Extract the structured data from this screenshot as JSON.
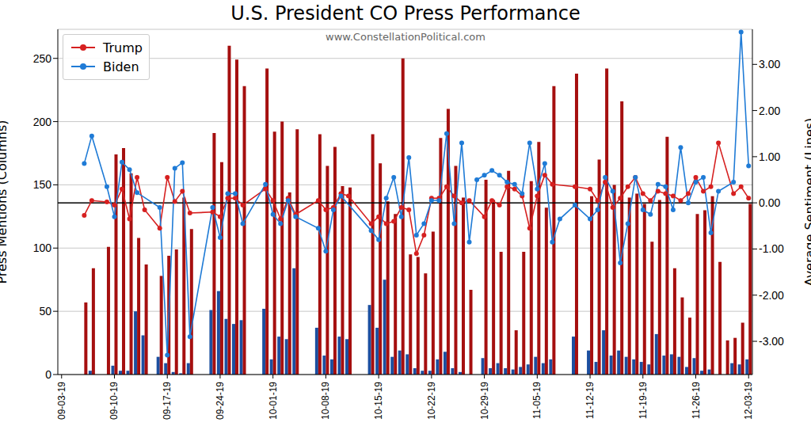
{
  "chart_data": {
    "type": "bar",
    "title": "U.S. President CO Press Performance",
    "subtitle": "www.ConstellationPolitical.com",
    "y_label": "Press Mentions (Columns)",
    "y2_label": "Average Sentiment (Lines)",
    "categories": [
      "09-03-19",
      null,
      null,
      null,
      null,
      null,
      null,
      "09-10-19",
      null,
      null,
      null,
      null,
      null,
      null,
      "09-17-19",
      null,
      null,
      null,
      null,
      null,
      null,
      "09-24-19",
      null,
      null,
      null,
      null,
      null,
      null,
      "10-01-19",
      null,
      null,
      null,
      null,
      null,
      null,
      "10-08-19",
      null,
      null,
      null,
      null,
      null,
      null,
      "10-15-19",
      null,
      null,
      null,
      null,
      null,
      null,
      "10-22-19",
      null,
      null,
      null,
      null,
      null,
      null,
      "10-29-19",
      null,
      null,
      null,
      null,
      null,
      null,
      "11-05-19",
      null,
      null,
      null,
      null,
      null,
      null,
      "11-12-19",
      null,
      null,
      null,
      null,
      null,
      null,
      "11-19-19",
      null,
      null,
      null,
      null,
      null,
      null,
      "11-26-19",
      null,
      null,
      null,
      null,
      null,
      null,
      "12-03-19"
    ],
    "series": [
      {
        "name": "Trump",
        "type": "bar",
        "color": "#a50f0f",
        "values": [
          null,
          null,
          null,
          57,
          84,
          null,
          101,
          174,
          179,
          159,
          108,
          87,
          null,
          78,
          94,
          99,
          140,
          115,
          null,
          null,
          191,
          168,
          260,
          249,
          228,
          null,
          null,
          242,
          192,
          200,
          144,
          194,
          null,
          null,
          190,
          165,
          180,
          149,
          148,
          null,
          null,
          190,
          167,
          137,
          127,
          250,
          95,
          93,
          80,
          113,
          187,
          210,
          165,
          140,
          67,
          null,
          154,
          138,
          97,
          161,
          35,
          97,
          153,
          184,
          132,
          228,
          null,
          null,
          238,
          null,
          141,
          170,
          242,
          150,
          216,
          140,
          143,
          135,
          105,
          138,
          188,
          84,
          61,
          45,
          127,
          130,
          141,
          89,
          27,
          29,
          41,
          135
        ]
      },
      {
        "name": "Biden",
        "type": "bar",
        "color": "#1c4fa0",
        "values": [
          null,
          null,
          null,
          null,
          3,
          null,
          null,
          7,
          3,
          3,
          50,
          31,
          null,
          14,
          9,
          2,
          1,
          9,
          null,
          null,
          51,
          66,
          44,
          40,
          43,
          null,
          null,
          52,
          12,
          30,
          28,
          84,
          null,
          null,
          37,
          15,
          12,
          30,
          28,
          null,
          null,
          55,
          37,
          75,
          14,
          19,
          16,
          5,
          3,
          3,
          12,
          18,
          5,
          2,
          null,
          null,
          13,
          5,
          9,
          5,
          4,
          6,
          8,
          14,
          9,
          12,
          null,
          null,
          30,
          null,
          19,
          10,
          35,
          15,
          19,
          14,
          12,
          10,
          8,
          32,
          15,
          16,
          14,
          6,
          13,
          3,
          4,
          null,
          null,
          9,
          8,
          12
        ]
      },
      {
        "name": "Trump",
        "type": "line",
        "axis": "y2",
        "color": "#d62020",
        "marker": "o",
        "line_style": "solid",
        "values": [
          null,
          null,
          null,
          -0.27,
          0.05,
          null,
          0.02,
          -0.05,
          0.3,
          -0.35,
          0.55,
          -0.15,
          null,
          -0.55,
          0.55,
          0.03,
          0.25,
          -0.22,
          null,
          null,
          -0.2,
          -0.3,
          0.1,
          0.1,
          -0.05,
          null,
          null,
          0.3,
          0.05,
          -0.35,
          0.1,
          -0.25,
          null,
          null,
          0.05,
          -0.15,
          -0.1,
          0.2,
          0.15,
          null,
          null,
          -0.45,
          -0.3,
          -0.45,
          -0.4,
          -0.1,
          -0.15,
          -1.1,
          -0.7,
          0.1,
          0.1,
          0.35,
          0.15,
          0,
          0.05,
          null,
          -0.3,
          0.05,
          -0.05,
          0.35,
          0.3,
          0.15,
          -0.55,
          0.15,
          0.6,
          0.4,
          null,
          null,
          0.35,
          null,
          0.3,
          0.05,
          0.45,
          -0.1,
          0.1,
          0.35,
          0.55,
          0.2,
          0.05,
          0.25,
          0.2,
          0.15,
          0.05,
          0.2,
          0.55,
          0.25,
          0.35,
          1.3,
          null,
          0.2,
          0.35,
          0.1
        ]
      },
      {
        "name": "Biden",
        "type": "line",
        "axis": "y2",
        "color": "#1f7bd6",
        "marker": "o",
        "line_style": "solid",
        "values": [
          null,
          null,
          null,
          0.85,
          1.45,
          null,
          0.35,
          -0.3,
          0.88,
          0.72,
          0.22,
          null,
          null,
          -0.1,
          -3.3,
          0.75,
          0.87,
          -2.9,
          null,
          null,
          -0.1,
          -0.75,
          0.2,
          0.2,
          -0.45,
          null,
          null,
          0.4,
          -0.25,
          -0.45,
          0.05,
          -0.3,
          null,
          null,
          -0.55,
          -1.05,
          -0.15,
          0.15,
          null,
          null,
          null,
          -0.6,
          -0.8,
          0.1,
          0.55,
          -0.3,
          0.98,
          -0.7,
          -0.45,
          0.05,
          0.05,
          1.5,
          -0.45,
          1.3,
          -0.85,
          0.5,
          0.6,
          0.7,
          0.6,
          0.45,
          0.4,
          0.2,
          1.3,
          0.3,
          0.85,
          -0.85,
          -0.35,
          null,
          -0.05,
          null,
          -0.35,
          -0.15,
          0.55,
          0.25,
          -1.3,
          -0.45,
          0.55,
          -0.15,
          -0.25,
          0.4,
          0.35,
          -0.15,
          1.2,
          0,
          0.45,
          0.55,
          -0.65,
          0.25,
          null,
          0.45,
          3.7,
          0.8
        ]
      }
    ],
    "ylim": [
      0,
      273
    ],
    "yticks": [
      0,
      50,
      100,
      150,
      200,
      250
    ],
    "y2lim": [
      -3.72,
      3.76
    ],
    "y2ticks": [
      {
        "value": -3,
        "label": "-3.00"
      },
      {
        "value": -2,
        "label": "-2.00"
      },
      {
        "value": -1,
        "label": "-1.00"
      },
      {
        "value": 0,
        "label": "0.00"
      },
      {
        "value": 1,
        "label": "1.00"
      },
      {
        "value": 2,
        "label": "2.00"
      },
      {
        "value": 3,
        "label": "3.00"
      }
    ],
    "grid": true,
    "legend": "upper left"
  }
}
